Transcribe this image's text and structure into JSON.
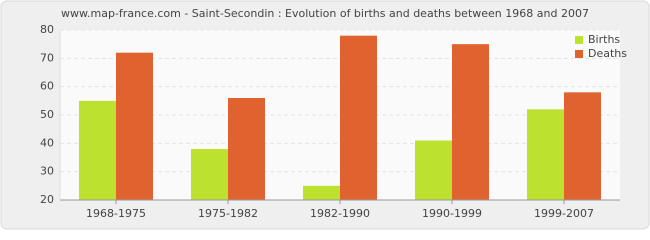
{
  "chart_data": {
    "type": "bar",
    "title": "www.map-france.com - Saint-Secondin : Evolution of births and deaths between 1968 and 2007",
    "categories": [
      "1968-1975",
      "1975-1982",
      "1982-1990",
      "1990-1999",
      "1999-2007"
    ],
    "series": [
      {
        "name": "Births",
        "color": "#bde12f",
        "values": [
          55,
          38,
          25,
          41,
          52
        ]
      },
      {
        "name": "Deaths",
        "color": "#e0632f",
        "values": [
          72,
          56,
          78,
          75,
          58
        ]
      }
    ],
    "ylim": [
      20,
      80
    ],
    "yticks": [
      20,
      30,
      40,
      50,
      60,
      70,
      80
    ],
    "grid": true,
    "legend": "top-right"
  }
}
